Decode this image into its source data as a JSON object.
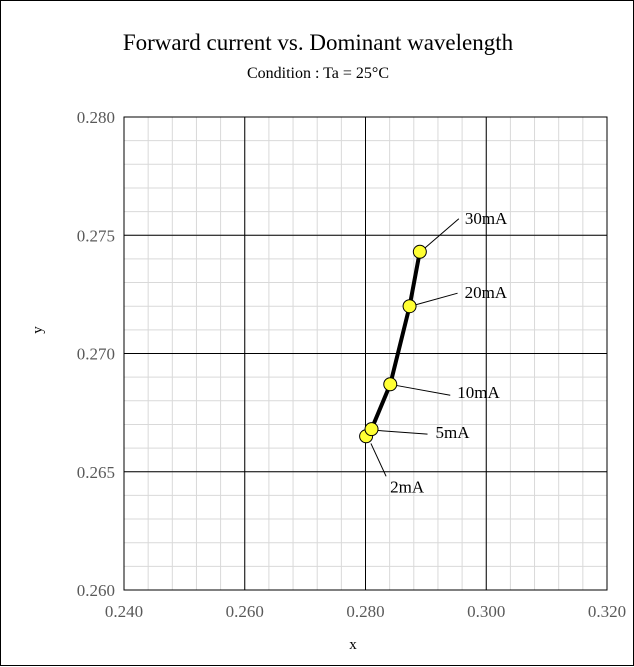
{
  "chart_data": {
    "type": "line",
    "title": "Forward current vs. Dominant wavelength",
    "subtitle": "Condition : Ta = 25°C",
    "xlabel": "x",
    "ylabel": "y",
    "xlim": [
      0.24,
      0.32
    ],
    "ylim": [
      0.26,
      0.28
    ],
    "xticks": [
      0.24,
      0.26,
      0.28,
      0.3,
      0.32
    ],
    "yticks": [
      0.26,
      0.265,
      0.27,
      0.275,
      0.28
    ],
    "xtick_labels": [
      "0.240",
      "0.260",
      "0.280",
      "0.300",
      "0.320"
    ],
    "ytick_labels": [
      "0.260",
      "0.265",
      "0.270",
      "0.275",
      "0.280"
    ],
    "grid": true,
    "marker_color": "#ffff33",
    "line_color": "#000000",
    "series": [
      {
        "points": [
          {
            "x": 0.2801,
            "y": 0.2665,
            "label": "2mA"
          },
          {
            "x": 0.281,
            "y": 0.2668,
            "label": "5mA"
          },
          {
            "x": 0.2841,
            "y": 0.2687,
            "label": "10mA"
          },
          {
            "x": 0.2873,
            "y": 0.272,
            "label": "20mA"
          },
          {
            "x": 0.289,
            "y": 0.2743,
            "label": "30mA"
          }
        ]
      }
    ]
  }
}
